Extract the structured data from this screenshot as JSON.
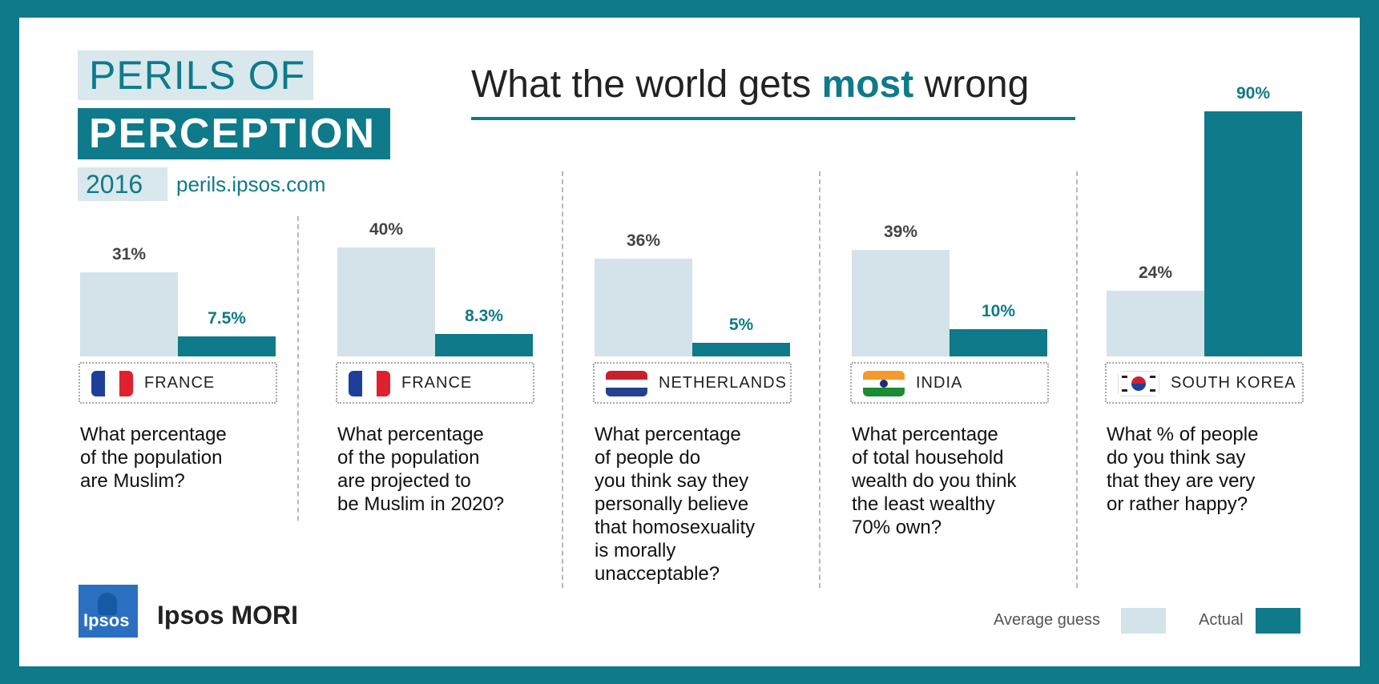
{
  "branding": {
    "line1": "PERILS OF",
    "line2": "PERCEPTION",
    "year": "2016",
    "url": "perils.ipsos.com"
  },
  "headline": {
    "before": "What the world gets ",
    "emphasis": "most",
    "after": " wrong"
  },
  "colors": {
    "accent": "#0e7a8a",
    "average_guess": "#d3e3e9",
    "actual": "#0e7a8a",
    "frame": "#0e7a8a"
  },
  "chart_data": {
    "type": "bar",
    "ylim": [
      0,
      100
    ],
    "series": [
      {
        "name": "Average guess",
        "values": [
          31,
          40,
          36,
          39,
          24
        ],
        "labels": [
          "31%",
          "40%",
          "36%",
          "39%",
          "24%"
        ]
      },
      {
        "name": "Actual",
        "values": [
          7.5,
          8.3,
          5,
          10,
          90
        ],
        "labels": [
          "7.5%",
          "8.3%",
          "5%",
          "10%",
          "90%"
        ]
      }
    ],
    "panels": [
      {
        "country": "FRANCE",
        "flag": "flag-france",
        "question": "What percentage\nof the population\nare Muslim?"
      },
      {
        "country": "FRANCE",
        "flag": "flag-france",
        "question": "What percentage\nof the population\nare projected to\nbe Muslim in 2020?"
      },
      {
        "country": "NETHERLANDS",
        "flag": "flag-netherlands",
        "question": "What percentage\nof people do\nyou think say they\npersonally believe\nthat homosexuality\nis morally\nunacceptable?"
      },
      {
        "country": "INDIA",
        "flag": "flag-india",
        "question": "What percentage\nof total household\nwealth do you think\nthe least wealthy\n70% own?"
      },
      {
        "country": "SOUTH KOREA",
        "flag": "flag-south-korea",
        "question": "What % of people\ndo you think say\nthat they are very\nor rather happy?"
      }
    ]
  },
  "legend": {
    "average_guess": "Average guess",
    "actual": "Actual"
  },
  "footer": {
    "logo_text": "Ipsos",
    "company": "Ipsos MORI"
  }
}
